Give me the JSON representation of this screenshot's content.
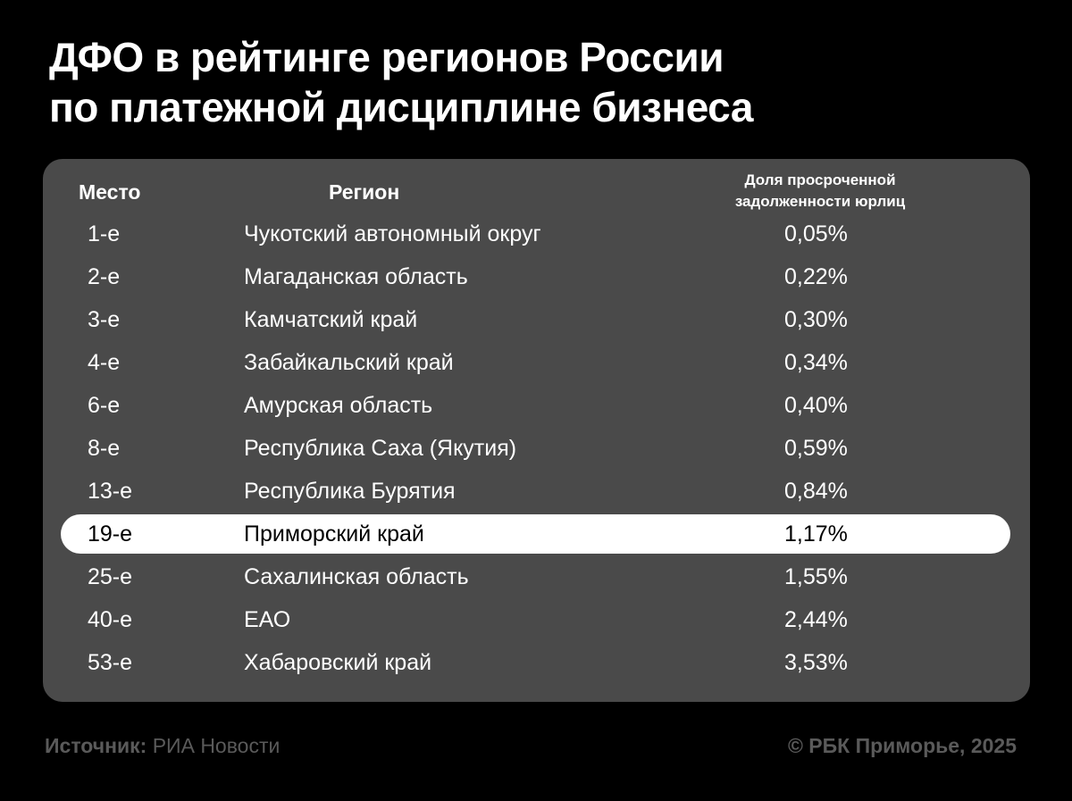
{
  "title": {
    "line1": "ДФО в рейтинге регионов России",
    "line2": "по платежной дисциплине бизнеса"
  },
  "chart_data": {
    "type": "table",
    "columns": [
      "Место",
      "Регион",
      "Доля просроченной задолженности юрлиц"
    ],
    "rows": [
      {
        "place": "1-е",
        "region": "Чукотский автономный округ",
        "share": "0,05%"
      },
      {
        "place": "2-е",
        "region": "Магаданская область",
        "share": "0,22%"
      },
      {
        "place": "3-е",
        "region": "Камчатский край",
        "share": "0,30%"
      },
      {
        "place": "4-е",
        "region": "Забайкальский край",
        "share": "0,34%"
      },
      {
        "place": "6-е",
        "region": "Амурская область",
        "share": "0,40%"
      },
      {
        "place": "8-е",
        "region": "Республика Саха (Якутия)",
        "share": "0,59%"
      },
      {
        "place": "13-е",
        "region": "Республика Бурятия",
        "share": "0,84%"
      },
      {
        "place": "19-е",
        "region": "Приморский край",
        "share": "1,17%",
        "highlighted": true
      },
      {
        "place": "25-е",
        "region": "Сахалинская область",
        "share": "1,55%"
      },
      {
        "place": "40-е",
        "region": "ЕАО",
        "share": "2,44%"
      },
      {
        "place": "53-е",
        "region": "Хабаровский край",
        "share": "3,53%"
      }
    ]
  },
  "table": {
    "header_place": "Место",
    "header_region": "Регион",
    "header_share_line1": "Доля просроченной",
    "header_share_line2": "задолженности юрлиц"
  },
  "footer": {
    "source_label": "Источник:",
    "source_value": "РИА Новости",
    "copyright": "© РБК Приморье, 2025"
  },
  "colors": {
    "background": "#000000",
    "panel": "#4a4a4a",
    "highlight_row": "#ffffff",
    "footer_text": "#5a5a5a"
  }
}
